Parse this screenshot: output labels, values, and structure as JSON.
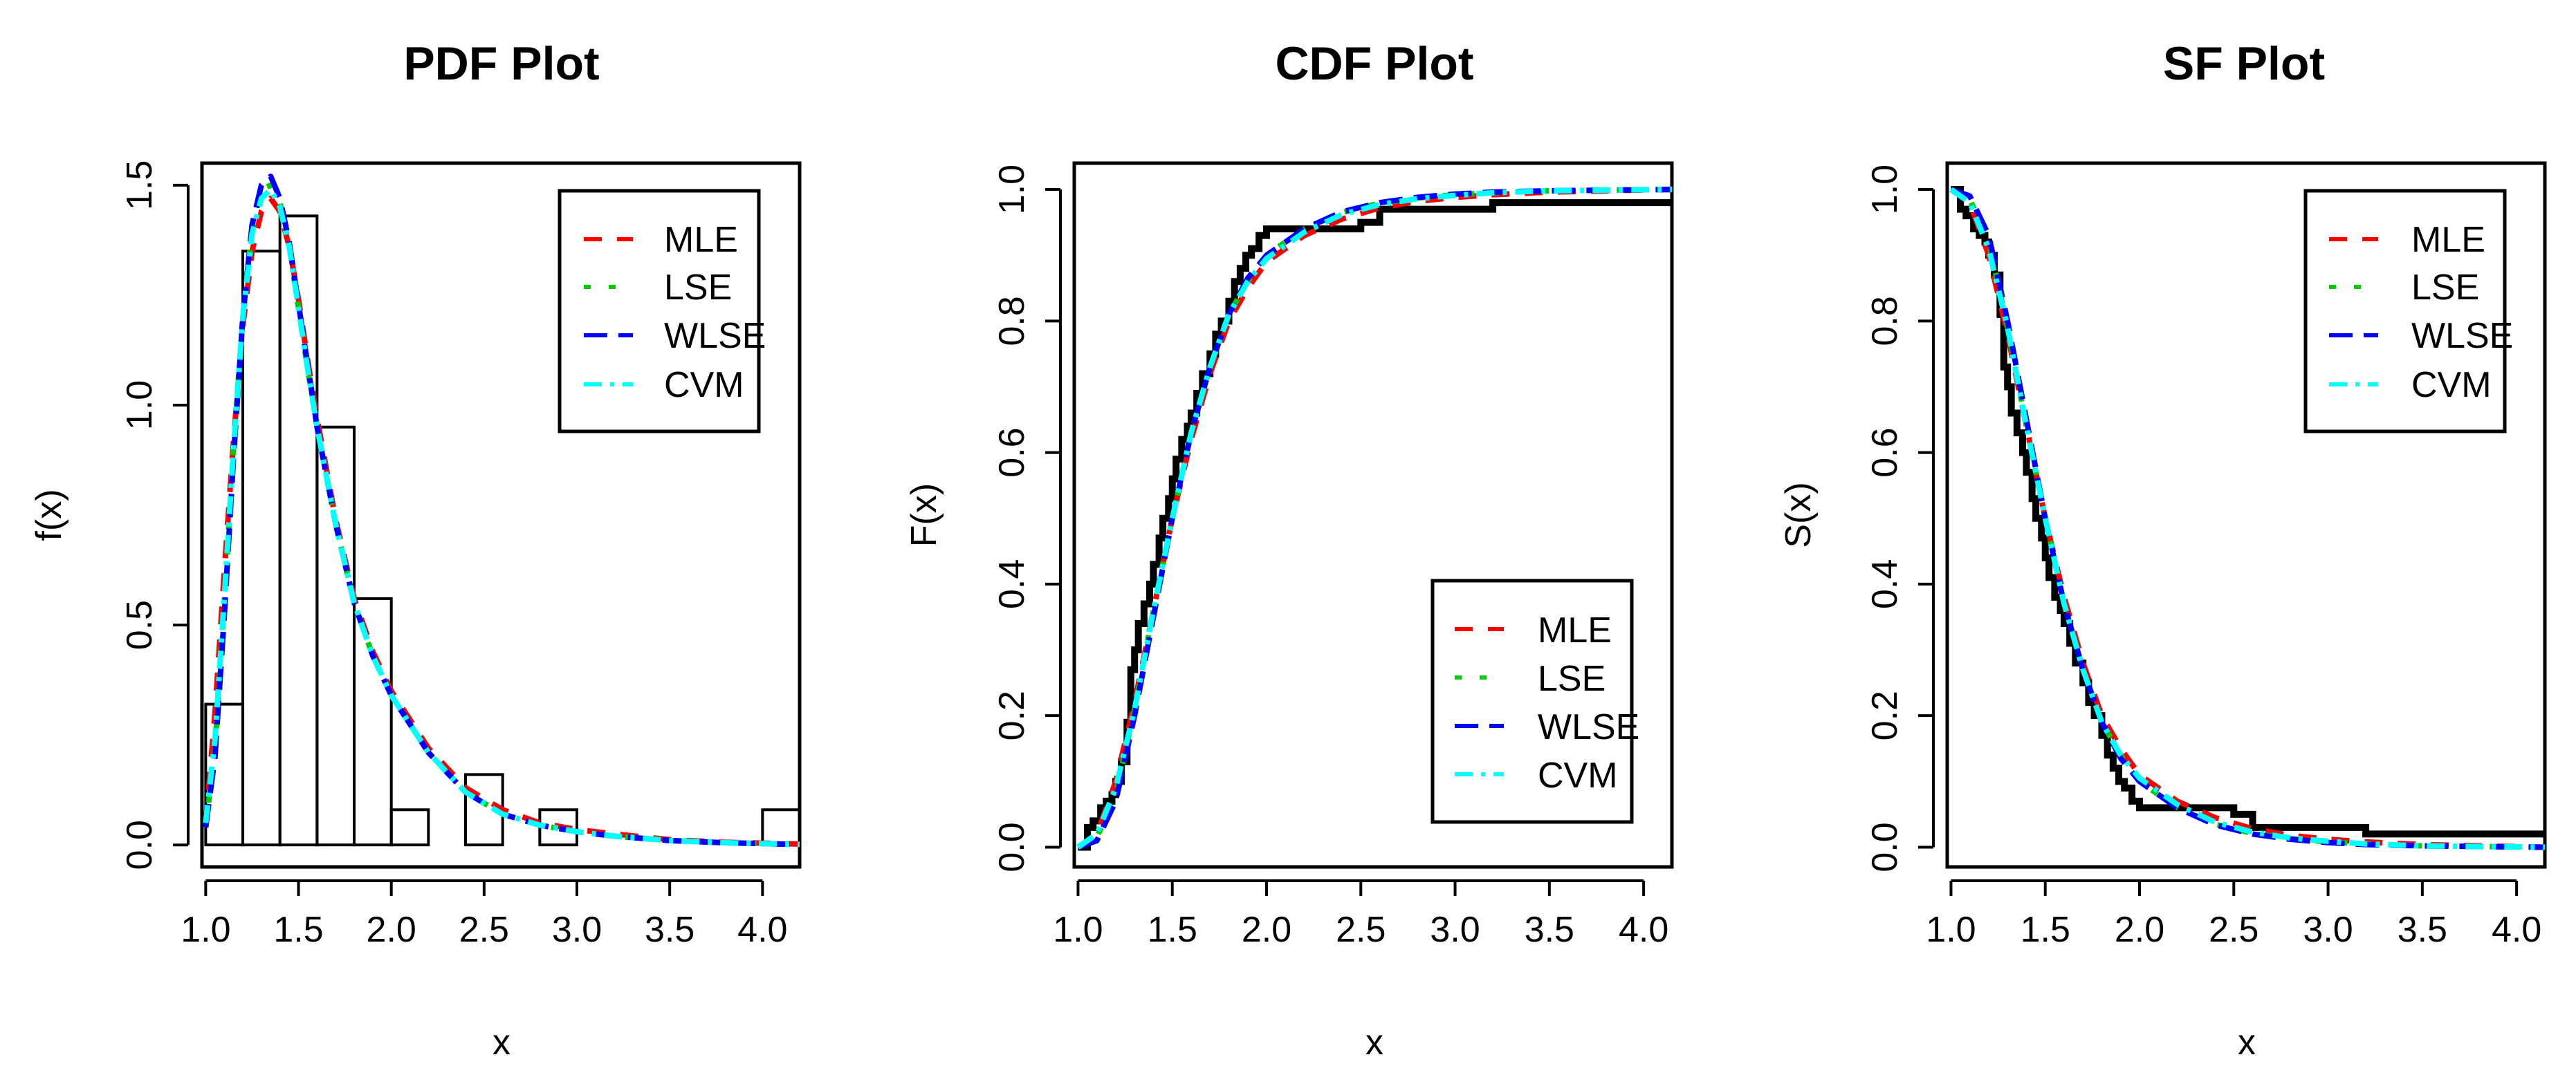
{
  "chart_data": [
    {
      "type": "histogram+line",
      "title": "PDF Plot",
      "xlabel": "x",
      "ylabel": "f(x)",
      "xlim": [
        0.98,
        4.2
      ],
      "ylim": [
        -0.05,
        1.55
      ],
      "xticks": [
        1.0,
        1.5,
        2.0,
        2.5,
        3.0,
        3.5,
        4.0
      ],
      "xtick_labels": [
        "1.0",
        "1.5",
        "2.0",
        "2.5",
        "3.0",
        "3.5",
        "4.0"
      ],
      "yticks": [
        0.0,
        0.5,
        1.0,
        1.5
      ],
      "ytick_labels": [
        "0.0",
        "0.5",
        "1.0",
        "1.5"
      ],
      "legend_position": "top-right",
      "histogram": {
        "bin_edges": [
          1.0,
          1.2,
          1.4,
          1.6,
          1.8,
          2.0,
          2.2,
          2.4,
          2.6,
          2.8,
          3.0,
          3.2,
          3.4,
          3.6,
          3.8,
          4.0,
          4.2
        ],
        "densities": [
          0.32,
          1.35,
          1.43,
          0.95,
          0.56,
          0.08,
          0,
          0.16,
          0,
          0.08,
          0,
          0,
          0,
          0,
          0,
          0.08
        ]
      },
      "x": [
        1.0,
        1.05,
        1.1,
        1.15,
        1.2,
        1.25,
        1.3,
        1.35,
        1.4,
        1.45,
        1.5,
        1.55,
        1.6,
        1.7,
        1.8,
        1.9,
        2.0,
        2.2,
        2.4,
        2.6,
        2.8,
        3.0,
        3.2,
        3.5,
        3.8,
        4.2
      ],
      "series": [
        {
          "name": "MLE",
          "values": [
            0.05,
            0.3,
            0.62,
            0.92,
            1.18,
            1.35,
            1.44,
            1.47,
            1.44,
            1.36,
            1.24,
            1.1,
            0.97,
            0.74,
            0.56,
            0.44,
            0.35,
            0.22,
            0.13,
            0.08,
            0.05,
            0.035,
            0.025,
            0.012,
            0.006,
            0.002
          ]
        },
        {
          "name": "LSE",
          "values": [
            0.04,
            0.22,
            0.55,
            0.9,
            1.2,
            1.4,
            1.49,
            1.5,
            1.46,
            1.36,
            1.22,
            1.08,
            0.95,
            0.73,
            0.55,
            0.43,
            0.34,
            0.21,
            0.12,
            0.07,
            0.045,
            0.03,
            0.02,
            0.01,
            0.005,
            0.001
          ]
        },
        {
          "name": "WLSE",
          "values": [
            0.04,
            0.2,
            0.52,
            0.88,
            1.2,
            1.41,
            1.5,
            1.52,
            1.47,
            1.37,
            1.23,
            1.09,
            0.95,
            0.73,
            0.55,
            0.43,
            0.34,
            0.21,
            0.12,
            0.07,
            0.045,
            0.03,
            0.02,
            0.01,
            0.005,
            0.001
          ]
        },
        {
          "name": "CVM",
          "values": [
            0.05,
            0.24,
            0.56,
            0.9,
            1.2,
            1.39,
            1.47,
            1.49,
            1.45,
            1.36,
            1.22,
            1.08,
            0.95,
            0.73,
            0.55,
            0.43,
            0.34,
            0.21,
            0.12,
            0.07,
            0.045,
            0.03,
            0.02,
            0.01,
            0.005,
            0.001
          ]
        }
      ]
    },
    {
      "type": "step+line",
      "title": "CDF Plot",
      "xlabel": "x",
      "ylabel": "F(x)",
      "xlim": [
        0.98,
        4.15
      ],
      "ylim": [
        -0.03,
        1.04
      ],
      "xticks": [
        1.0,
        1.5,
        2.0,
        2.5,
        3.0,
        3.5,
        4.0
      ],
      "xtick_labels": [
        "1.0",
        "1.5",
        "2.0",
        "2.5",
        "3.0",
        "3.5",
        "4.0"
      ],
      "yticks": [
        0.0,
        0.2,
        0.4,
        0.6,
        0.8,
        1.0
      ],
      "ytick_labels": [
        "0.0",
        "0.2",
        "0.4",
        "0.6",
        "0.8",
        "1.0"
      ],
      "legend_position": "bottom-right",
      "empirical": {
        "x": [
          1.0,
          1.05,
          1.08,
          1.12,
          1.15,
          1.18,
          1.2,
          1.23,
          1.26,
          1.28,
          1.3,
          1.32,
          1.35,
          1.38,
          1.4,
          1.43,
          1.45,
          1.48,
          1.5,
          1.52,
          1.55,
          1.58,
          1.6,
          1.63,
          1.66,
          1.7,
          1.73,
          1.76,
          1.8,
          1.83,
          1.86,
          1.89,
          1.92,
          1.96,
          2.0,
          2.1,
          2.2,
          2.3,
          2.4,
          2.5,
          2.6,
          3.2,
          4.15
        ],
        "y": [
          0.0,
          0.03,
          0.04,
          0.06,
          0.07,
          0.08,
          0.1,
          0.13,
          0.19,
          0.27,
          0.3,
          0.34,
          0.37,
          0.4,
          0.43,
          0.47,
          0.5,
          0.53,
          0.56,
          0.59,
          0.62,
          0.64,
          0.66,
          0.69,
          0.72,
          0.75,
          0.78,
          0.8,
          0.83,
          0.86,
          0.88,
          0.9,
          0.91,
          0.93,
          0.94,
          0.94,
          0.94,
          0.94,
          0.94,
          0.95,
          0.97,
          0.98,
          0.98
        ]
      },
      "x": [
        1.0,
        1.1,
        1.2,
        1.3,
        1.4,
        1.5,
        1.6,
        1.7,
        1.8,
        1.9,
        2.0,
        2.2,
        2.4,
        2.6,
        2.8,
        3.0,
        3.2,
        3.5,
        3.8,
        4.15
      ],
      "series": [
        {
          "name": "MLE",
          "values": [
            0.0,
            0.02,
            0.1,
            0.22,
            0.36,
            0.5,
            0.62,
            0.72,
            0.8,
            0.85,
            0.89,
            0.93,
            0.955,
            0.972,
            0.982,
            0.988,
            0.992,
            0.996,
            0.998,
            1.0
          ]
        },
        {
          "name": "LSE",
          "values": [
            0.0,
            0.015,
            0.08,
            0.21,
            0.36,
            0.5,
            0.63,
            0.73,
            0.81,
            0.86,
            0.9,
            0.94,
            0.965,
            0.979,
            0.987,
            0.992,
            0.995,
            0.998,
            0.999,
            1.0
          ]
        },
        {
          "name": "WLSE",
          "values": [
            0.0,
            0.01,
            0.07,
            0.2,
            0.35,
            0.5,
            0.63,
            0.73,
            0.81,
            0.865,
            0.9,
            0.94,
            0.966,
            0.98,
            0.988,
            0.993,
            0.996,
            0.998,
            0.999,
            1.0
          ]
        },
        {
          "name": "CVM",
          "values": [
            0.0,
            0.02,
            0.09,
            0.21,
            0.36,
            0.5,
            0.63,
            0.73,
            0.81,
            0.86,
            0.895,
            0.935,
            0.962,
            0.977,
            0.986,
            0.991,
            0.995,
            0.998,
            0.999,
            1.0
          ]
        }
      ]
    },
    {
      "type": "step+line",
      "title": "SF Plot",
      "xlabel": "x",
      "ylabel": "S(x)",
      "xlim": [
        0.98,
        4.15
      ],
      "ylim": [
        -0.03,
        1.04
      ],
      "xticks": [
        1.0,
        1.5,
        2.0,
        2.5,
        3.0,
        3.5,
        4.0
      ],
      "xtick_labels": [
        "1.0",
        "1.5",
        "2.0",
        "2.5",
        "3.0",
        "3.5",
        "4.0"
      ],
      "yticks": [
        0.0,
        0.2,
        0.4,
        0.6,
        0.8,
        1.0
      ],
      "ytick_labels": [
        "0.0",
        "0.2",
        "0.4",
        "0.6",
        "0.8",
        "1.0"
      ],
      "legend_position": "top-right",
      "empirical": {
        "x": [
          1.0,
          1.05,
          1.08,
          1.12,
          1.15,
          1.18,
          1.2,
          1.23,
          1.26,
          1.28,
          1.3,
          1.32,
          1.35,
          1.38,
          1.4,
          1.43,
          1.45,
          1.48,
          1.5,
          1.52,
          1.55,
          1.58,
          1.6,
          1.63,
          1.66,
          1.7,
          1.73,
          1.76,
          1.8,
          1.83,
          1.86,
          1.89,
          1.92,
          1.96,
          2.0,
          2.1,
          2.2,
          2.3,
          2.4,
          2.5,
          2.6,
          3.2,
          4.15
        ],
        "y": [
          1.0,
          0.97,
          0.96,
          0.94,
          0.93,
          0.92,
          0.9,
          0.87,
          0.81,
          0.73,
          0.7,
          0.66,
          0.63,
          0.6,
          0.57,
          0.53,
          0.5,
          0.47,
          0.44,
          0.41,
          0.38,
          0.36,
          0.34,
          0.31,
          0.28,
          0.25,
          0.22,
          0.2,
          0.17,
          0.14,
          0.12,
          0.1,
          0.09,
          0.07,
          0.06,
          0.06,
          0.06,
          0.06,
          0.06,
          0.05,
          0.03,
          0.02,
          0.02
        ]
      },
      "x": [
        1.0,
        1.1,
        1.2,
        1.3,
        1.4,
        1.5,
        1.6,
        1.7,
        1.8,
        1.9,
        2.0,
        2.2,
        2.4,
        2.6,
        2.8,
        3.0,
        3.2,
        3.5,
        3.8,
        4.15
      ],
      "series": [
        {
          "name": "MLE",
          "values": [
            1.0,
            0.98,
            0.9,
            0.78,
            0.64,
            0.5,
            0.38,
            0.28,
            0.2,
            0.15,
            0.11,
            0.07,
            0.045,
            0.028,
            0.018,
            0.012,
            0.008,
            0.004,
            0.002,
            0.0
          ]
        },
        {
          "name": "LSE",
          "values": [
            1.0,
            0.985,
            0.92,
            0.79,
            0.64,
            0.5,
            0.37,
            0.27,
            0.19,
            0.14,
            0.1,
            0.06,
            0.035,
            0.021,
            0.013,
            0.008,
            0.005,
            0.002,
            0.001,
            0.0
          ]
        },
        {
          "name": "WLSE",
          "values": [
            1.0,
            0.99,
            0.93,
            0.8,
            0.65,
            0.5,
            0.37,
            0.27,
            0.19,
            0.135,
            0.1,
            0.06,
            0.034,
            0.02,
            0.012,
            0.007,
            0.004,
            0.002,
            0.001,
            0.0
          ]
        },
        {
          "name": "CVM",
          "values": [
            1.0,
            0.98,
            0.91,
            0.79,
            0.64,
            0.5,
            0.37,
            0.27,
            0.19,
            0.14,
            0.105,
            0.065,
            0.038,
            0.023,
            0.014,
            0.009,
            0.005,
            0.002,
            0.001,
            0.0
          ]
        }
      ]
    }
  ],
  "colors": {
    "MLE": "#ff0000",
    "LSE": "#00cc00",
    "WLSE": "#0000ff",
    "CVM": "#00ffff",
    "empirical": "#000000"
  }
}
